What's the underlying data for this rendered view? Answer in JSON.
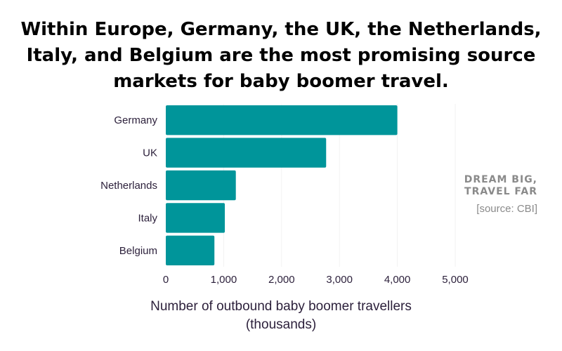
{
  "title": "Within Europe, Germany, the UK, the Netherlands, Italy, and Belgium are the most promising source markets for baby boomer travel.",
  "branding": {
    "line1": "DREAM BIG,",
    "line2": "TRAVEL FAR",
    "source": "[source: CBI]"
  },
  "colors": {
    "bar": "#00959A",
    "text": "#2B1F3A",
    "grid": "#F2F2F2"
  },
  "chart_data": {
    "type": "bar",
    "orientation": "horizontal",
    "categories": [
      "Germany",
      "UK",
      "Netherlands",
      "Italy",
      "Belgium"
    ],
    "values": [
      4000,
      2770,
      1210,
      1020,
      840
    ],
    "xlabel": "Number of outbound baby boomer travellers (thousands)",
    "xlabel_lines": [
      "Number of outbound baby boomer travellers",
      "(thousands)"
    ],
    "ylabel": "",
    "xlim": [
      0,
      5000
    ],
    "xticks": [
      0,
      1000,
      2000,
      3000,
      4000,
      5000
    ],
    "xtick_labels": [
      "0",
      "1,000",
      "2,000",
      "3,000",
      "4,000",
      "5,000"
    ],
    "grid": true,
    "legend": "none"
  }
}
